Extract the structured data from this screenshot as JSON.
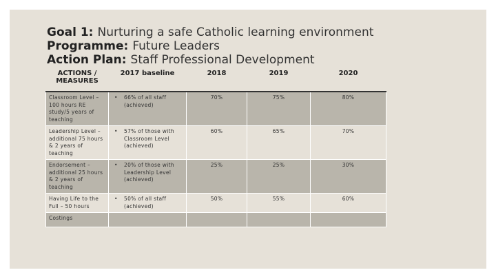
{
  "header": {
    "goal_label": "Goal 1:",
    "goal": "Nurturing a safe Catholic learning environment",
    "programme_label": "Programme:",
    "programme": "Future Leaders",
    "plan_label": "Action Plan:",
    "plan": "Staff Professional Development"
  },
  "table": {
    "columns": [
      "ACTIONS / MEASURES",
      "2017 baseline",
      "2018",
      "2019",
      "2020"
    ],
    "rows": [
      [
        "Classroom Level – 100 hours RE study/5 years of teaching",
        "66% of all staff (achieved)",
        "70%",
        "75%",
        "80%"
      ],
      [
        "Leadership Level – additional 75 hours & 2 years of teaching",
        "57% of those with Classroom Level (achieved)",
        "60%",
        "65%",
        "70%"
      ],
      [
        "Endorsement – additional 25 hours & 2 years of teaching",
        "20% of those with Leadership Level (achieved)",
        "25%",
        "25%",
        "30%"
      ],
      [
        "Having Life to the Full – 50 hours",
        "50% of all staff (achieved)",
        "50%",
        "55%",
        "60%"
      ]
    ],
    "costings": "Costings"
  }
}
